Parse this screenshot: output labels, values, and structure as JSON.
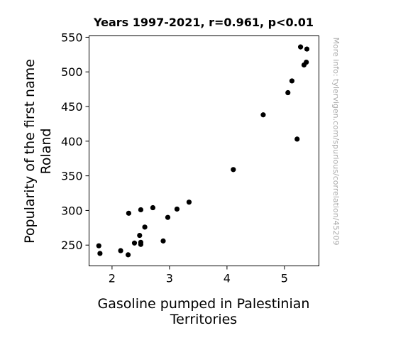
{
  "chart_data": {
    "type": "scatter",
    "title": "Years 1997-2021, r=0.961, p<0.01",
    "xlabel_lines": [
      "Gasoline pumped in Palestinian",
      "Territories"
    ],
    "ylabel_lines": [
      "Popularity of the first name",
      "Roland"
    ],
    "xlim": [
      1.6,
      5.6
    ],
    "ylim": [
      220,
      552
    ],
    "xticks": [
      2,
      3,
      4,
      5
    ],
    "yticks": [
      250,
      300,
      350,
      400,
      450,
      500,
      550
    ],
    "grid": false,
    "marker_color": "#000000",
    "watermark": "More info: tylervigen.com/spurious/correlation/45209",
    "points": [
      {
        "x": 1.77,
        "y": 249
      },
      {
        "x": 1.79,
        "y": 238
      },
      {
        "x": 2.15,
        "y": 242
      },
      {
        "x": 2.28,
        "y": 236
      },
      {
        "x": 2.29,
        "y": 296
      },
      {
        "x": 2.39,
        "y": 253
      },
      {
        "x": 2.48,
        "y": 264
      },
      {
        "x": 2.5,
        "y": 301
      },
      {
        "x": 2.5,
        "y": 254
      },
      {
        "x": 2.5,
        "y": 251
      },
      {
        "x": 2.57,
        "y": 276
      },
      {
        "x": 2.71,
        "y": 304
      },
      {
        "x": 2.89,
        "y": 256
      },
      {
        "x": 2.97,
        "y": 290
      },
      {
        "x": 3.13,
        "y": 302
      },
      {
        "x": 3.34,
        "y": 312
      },
      {
        "x": 4.11,
        "y": 359
      },
      {
        "x": 4.63,
        "y": 438
      },
      {
        "x": 5.06,
        "y": 470
      },
      {
        "x": 5.13,
        "y": 487
      },
      {
        "x": 5.22,
        "y": 403
      },
      {
        "x": 5.28,
        "y": 536
      },
      {
        "x": 5.34,
        "y": 510
      },
      {
        "x": 5.38,
        "y": 514
      },
      {
        "x": 5.39,
        "y": 533
      }
    ]
  }
}
